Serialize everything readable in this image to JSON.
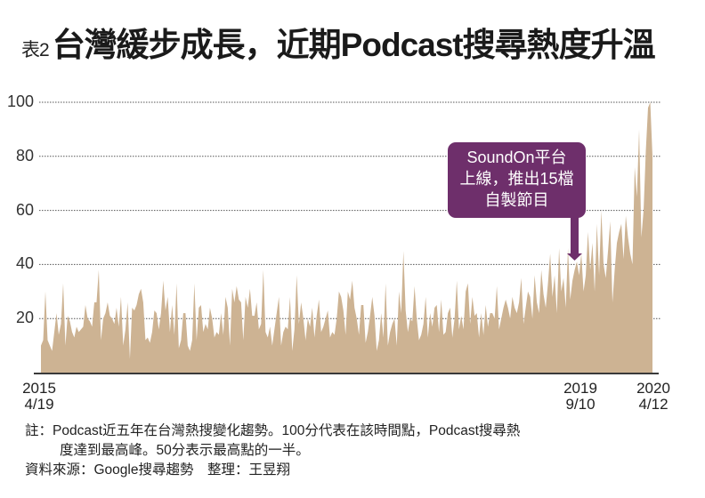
{
  "title": {
    "prefix": "表2",
    "main": "台灣緩步成長，近期Podcast搜尋熱度升溫"
  },
  "annotation": {
    "lines": [
      "SoundOn平台",
      "上線，推出15檔",
      "自製節目"
    ],
    "color": "#6e2f6b"
  },
  "notes": {
    "line1": "註：Podcast近五年在台灣熱搜變化趨勢。100分代表在該時間點，Podcast搜尋熱",
    "line2": "度達到最高峰。50分表示最高點的一半。",
    "source": "資料來源：Google搜尋趨勢　整理：王昱翔"
  },
  "colors": {
    "area": "#cdb393",
    "grid": "#555555",
    "axis": "#3a3a3a"
  },
  "chart_data": {
    "type": "area",
    "title": "台灣緩步成長，近期Podcast搜尋熱度升溫",
    "xlabel": "",
    "ylabel": "",
    "ylim": [
      0,
      100
    ],
    "yticks": [
      20,
      40,
      60,
      80,
      100
    ],
    "grid": true,
    "grid_style": "dotted",
    "x_tick_labels": [
      {
        "year": "2015",
        "date": "4/19"
      },
      {
        "year": "2019",
        "date": "9/10"
      },
      {
        "year": "2020",
        "date": "4/12"
      }
    ],
    "x_range": [
      "2015-04-19",
      "2020-04-12"
    ],
    "annotation": {
      "x": "2019-09-10",
      "y": 40,
      "text": "SoundOn平台上線，推出15檔自製節目"
    },
    "series": [
      {
        "name": "Podcast 搜尋熱度",
        "values": [
          10,
          12,
          30,
          12,
          10,
          8,
          15,
          22,
          14,
          18,
          33,
          10,
          21,
          19,
          15,
          13,
          17,
          15,
          16,
          17,
          25,
          20,
          19,
          17,
          26,
          26,
          38,
          12,
          20,
          22,
          26,
          21,
          20,
          18,
          24,
          17,
          28,
          10,
          16,
          26,
          5,
          24,
          23,
          25,
          29,
          31,
          26,
          12,
          13,
          11,
          15,
          23,
          22,
          16,
          22,
          34,
          23,
          28,
          15,
          25,
          14,
          33,
          9,
          12,
          22,
          22,
          10,
          8,
          12,
          33,
          12,
          24,
          25,
          15,
          18,
          16,
          24,
          20,
          13,
          15,
          14,
          22,
          14,
          28,
          24,
          10,
          31,
          26,
          32,
          27,
          26,
          12,
          28,
          24,
          31,
          21,
          21,
          26,
          16,
          18,
          38,
          15,
          13,
          17,
          10,
          16,
          22,
          28,
          10,
          15,
          17,
          16,
          28,
          8,
          16,
          36,
          18,
          26,
          20,
          12,
          20,
          17,
          24,
          13,
          21,
          27,
          15,
          17,
          20,
          23,
          13,
          15,
          14,
          20,
          30,
          28,
          23,
          14,
          30,
          27,
          34,
          24,
          20,
          14,
          25,
          25,
          11,
          15,
          21,
          28,
          21,
          8,
          12,
          22,
          13,
          33,
          10,
          15,
          18,
          20,
          10,
          30,
          22,
          45,
          23,
          15,
          20,
          19,
          32,
          20,
          12,
          14,
          18,
          28,
          13,
          22,
          17,
          24,
          25,
          15,
          27,
          14,
          15,
          22,
          24,
          13,
          20,
          34,
          16,
          21,
          16,
          30,
          33,
          18,
          28,
          21,
          22,
          13,
          22,
          14,
          25,
          17,
          22,
          22,
          20,
          32,
          16,
          20,
          24,
          27,
          24,
          20,
          28,
          24,
          22,
          26,
          35,
          18,
          24,
          30,
          28,
          20,
          36,
          26,
          22,
          38,
          29,
          24,
          33,
          44,
          28,
          36,
          22,
          46,
          30,
          35,
          24,
          46,
          27,
          34,
          38,
          41,
          36,
          44,
          30,
          36,
          52,
          38,
          48,
          30,
          55,
          36,
          60,
          40,
          35,
          45,
          56,
          26,
          38,
          48,
          52,
          55,
          42,
          58,
          50,
          44,
          40,
          76,
          65,
          90,
          50,
          60,
          82,
          98,
          100,
          80
        ]
      }
    ]
  }
}
